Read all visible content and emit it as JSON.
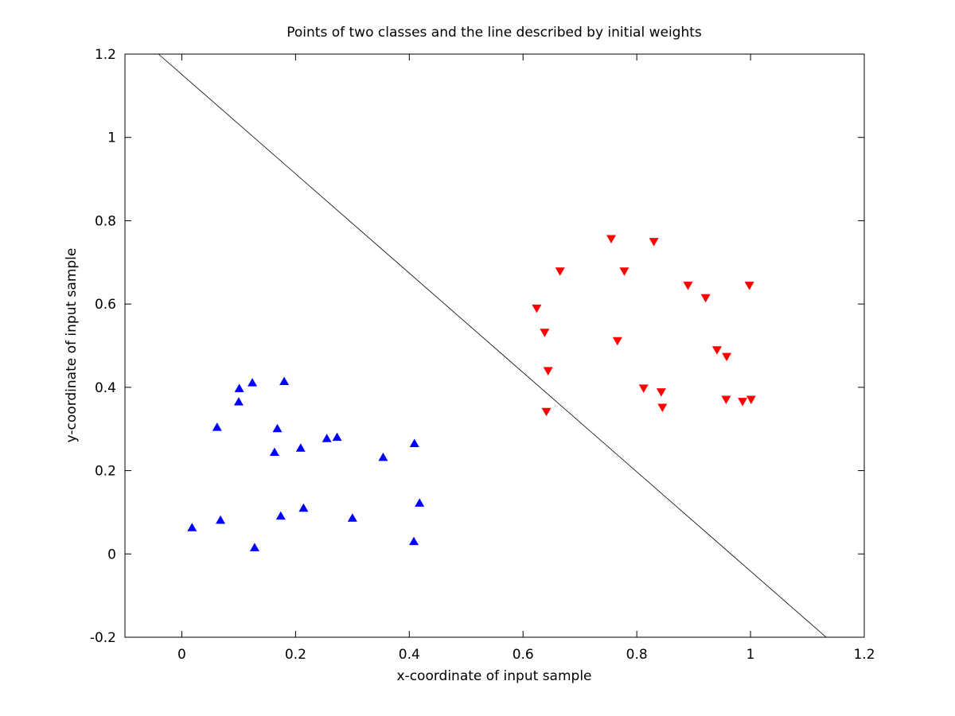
{
  "chart_data": {
    "type": "scatter",
    "title": "Points of two classes and the line described by initial weights",
    "xlabel": "x-coordinate of input sample",
    "ylabel": "y-coordinate of input sample",
    "xlim": [
      -0.1,
      1.2
    ],
    "ylim": [
      -0.2,
      1.2
    ],
    "xticks": [
      "0",
      "0.2",
      "0.4",
      "0.6",
      "0.8",
      "1",
      "1.2"
    ],
    "xtick_values": [
      0,
      0.2,
      0.4,
      0.6,
      0.8,
      1,
      1.2
    ],
    "yticks": [
      "-0.2",
      "0",
      "0.2",
      "0.4",
      "0.6",
      "0.8",
      "1",
      "1.2"
    ],
    "ytick_values": [
      -0.2,
      0,
      0.2,
      0.4,
      0.6,
      0.8,
      1,
      1.2
    ],
    "grid": false,
    "series": [
      {
        "marker": "triangle-up",
        "color": "#0000ff",
        "points": [
          [
            0.018,
            0.063
          ],
          [
            0.068,
            0.081
          ],
          [
            0.128,
            0.015
          ],
          [
            0.174,
            0.091
          ],
          [
            0.214,
            0.11
          ],
          [
            0.3,
            0.086
          ],
          [
            0.408,
            0.03
          ],
          [
            0.418,
            0.122
          ],
          [
            0.062,
            0.304
          ],
          [
            0.1,
            0.365
          ],
          [
            0.101,
            0.397
          ],
          [
            0.124,
            0.411
          ],
          [
            0.18,
            0.414
          ],
          [
            0.168,
            0.301
          ],
          [
            0.163,
            0.244
          ],
          [
            0.209,
            0.254
          ],
          [
            0.255,
            0.277
          ],
          [
            0.273,
            0.28
          ],
          [
            0.354,
            0.232
          ],
          [
            0.409,
            0.265
          ]
        ]
      },
      {
        "marker": "triangle-down",
        "color": "#ff0000",
        "points": [
          [
            0.755,
            0.757
          ],
          [
            0.83,
            0.75
          ],
          [
            0.665,
            0.679
          ],
          [
            0.778,
            0.679
          ],
          [
            0.89,
            0.645
          ],
          [
            0.998,
            0.645
          ],
          [
            0.921,
            0.615
          ],
          [
            0.624,
            0.59
          ],
          [
            0.638,
            0.532
          ],
          [
            0.766,
            0.512
          ],
          [
            0.941,
            0.49
          ],
          [
            0.958,
            0.474
          ],
          [
            0.644,
            0.44
          ],
          [
            0.812,
            0.398
          ],
          [
            0.843,
            0.389
          ],
          [
            0.957,
            0.371
          ],
          [
            0.986,
            0.366
          ],
          [
            1.001,
            0.371
          ],
          [
            0.845,
            0.352
          ],
          [
            0.641,
            0.342
          ]
        ]
      }
    ],
    "line": {
      "color": "#000000",
      "points": [
        [
          -0.041,
          1.2
        ],
        [
          1.133,
          -0.2
        ]
      ]
    }
  }
}
